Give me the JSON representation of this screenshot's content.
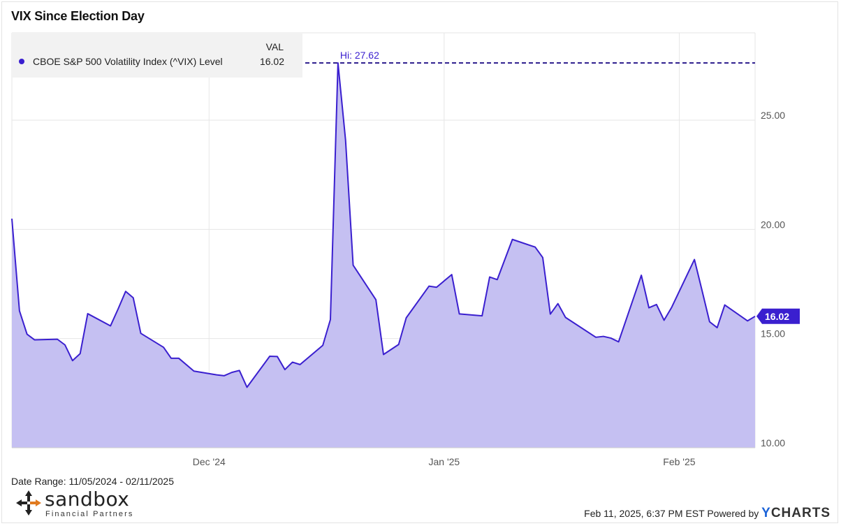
{
  "header": {
    "title": "VIX Since Election Day"
  },
  "legend": {
    "column_header": "VAL",
    "series_label": "CBOE S&P 500 Volatility Index (^VIX) Level",
    "series_value": "16.02",
    "dot_color": "#3a1fcf"
  },
  "footer": {
    "date_range": "Date Range: 11/05/2024 - 02/11/2025",
    "timestamp": "Feb 11, 2025, 6:37 PM EST Powered by",
    "brand_y": "Y",
    "brand_rest": "CHARTS",
    "logo_word": "sandbox",
    "logo_sub": "Financial Partners"
  },
  "chart_data": {
    "type": "area",
    "title": "VIX Since Election Day",
    "xlabel": "",
    "ylabel": "",
    "x_range": [
      "2024-11-05",
      "2025-02-11"
    ],
    "ylim": [
      10,
      29
    ],
    "y_ticks": [
      10,
      15,
      20,
      25
    ],
    "y_tick_labels": [
      "10.00",
      "15.00",
      "20.00",
      "25.00"
    ],
    "x_ticks": [
      {
        "date": "2024-12-01",
        "label": "Dec '24"
      },
      {
        "date": "2025-01-01",
        "label": "Jan '25"
      },
      {
        "date": "2025-02-01",
        "label": "Feb '25"
      }
    ],
    "grid": true,
    "legend_position": "top-left",
    "high": {
      "value": 27.62,
      "label": "Hi: 27.62"
    },
    "last_value_label": "16.02",
    "colors": {
      "line": "#3a1fcf",
      "fill": "#c5c0f2",
      "grid": "#e6e6e6"
    },
    "series": [
      {
        "name": "CBOE S&P 500 Volatility Index (^VIX) Level",
        "points": [
          [
            "2024-11-05",
            20.49
          ],
          [
            "2024-11-06",
            16.27
          ],
          [
            "2024-11-07",
            15.2
          ],
          [
            "2024-11-08",
            14.94
          ],
          [
            "2024-11-11",
            14.97
          ],
          [
            "2024-11-12",
            14.71
          ],
          [
            "2024-11-13",
            13.99
          ],
          [
            "2024-11-14",
            14.31
          ],
          [
            "2024-11-15",
            16.14
          ],
          [
            "2024-11-18",
            15.58
          ],
          [
            "2024-11-19",
            16.35
          ],
          [
            "2024-11-20",
            17.16
          ],
          [
            "2024-11-21",
            16.87
          ],
          [
            "2024-11-22",
            15.24
          ],
          [
            "2024-11-25",
            14.6
          ],
          [
            "2024-11-26",
            14.1
          ],
          [
            "2024-11-27",
            14.1
          ],
          [
            "2024-11-29",
            13.51
          ],
          [
            "2024-12-02",
            13.34
          ],
          [
            "2024-12-03",
            13.3
          ],
          [
            "2024-12-04",
            13.45
          ],
          [
            "2024-12-05",
            13.54
          ],
          [
            "2024-12-06",
            12.77
          ],
          [
            "2024-12-09",
            14.19
          ],
          [
            "2024-12-10",
            14.18
          ],
          [
            "2024-12-11",
            13.58
          ],
          [
            "2024-12-12",
            13.92
          ],
          [
            "2024-12-13",
            13.81
          ],
          [
            "2024-12-16",
            14.69
          ],
          [
            "2024-12-17",
            15.87
          ],
          [
            "2024-12-18",
            27.62
          ],
          [
            "2024-12-19",
            24.09
          ],
          [
            "2024-12-20",
            18.36
          ],
          [
            "2024-12-23",
            16.78
          ],
          [
            "2024-12-24",
            14.27
          ],
          [
            "2024-12-26",
            14.73
          ],
          [
            "2024-12-27",
            15.95
          ],
          [
            "2024-12-30",
            17.4
          ],
          [
            "2024-12-31",
            17.35
          ],
          [
            "2025-01-02",
            17.93
          ],
          [
            "2025-01-03",
            16.13
          ],
          [
            "2025-01-06",
            16.04
          ],
          [
            "2025-01-07",
            17.82
          ],
          [
            "2025-01-08",
            17.7
          ],
          [
            "2025-01-10",
            19.54
          ],
          [
            "2025-01-13",
            19.19
          ],
          [
            "2025-01-14",
            18.71
          ],
          [
            "2025-01-15",
            16.12
          ],
          [
            "2025-01-16",
            16.6
          ],
          [
            "2025-01-17",
            15.97
          ],
          [
            "2025-01-21",
            15.06
          ],
          [
            "2025-01-22",
            15.1
          ],
          [
            "2025-01-23",
            15.02
          ],
          [
            "2025-01-24",
            14.85
          ],
          [
            "2025-01-27",
            17.9
          ],
          [
            "2025-01-28",
            16.41
          ],
          [
            "2025-01-29",
            16.56
          ],
          [
            "2025-01-30",
            15.84
          ],
          [
            "2025-01-31",
            16.43
          ],
          [
            "2025-02-03",
            18.62
          ],
          [
            "2025-02-04",
            17.21
          ],
          [
            "2025-02-05",
            15.77
          ],
          [
            "2025-02-06",
            15.5
          ],
          [
            "2025-02-07",
            16.54
          ],
          [
            "2025-02-10",
            15.81
          ],
          [
            "2025-02-11",
            16.02
          ]
        ]
      }
    ]
  }
}
